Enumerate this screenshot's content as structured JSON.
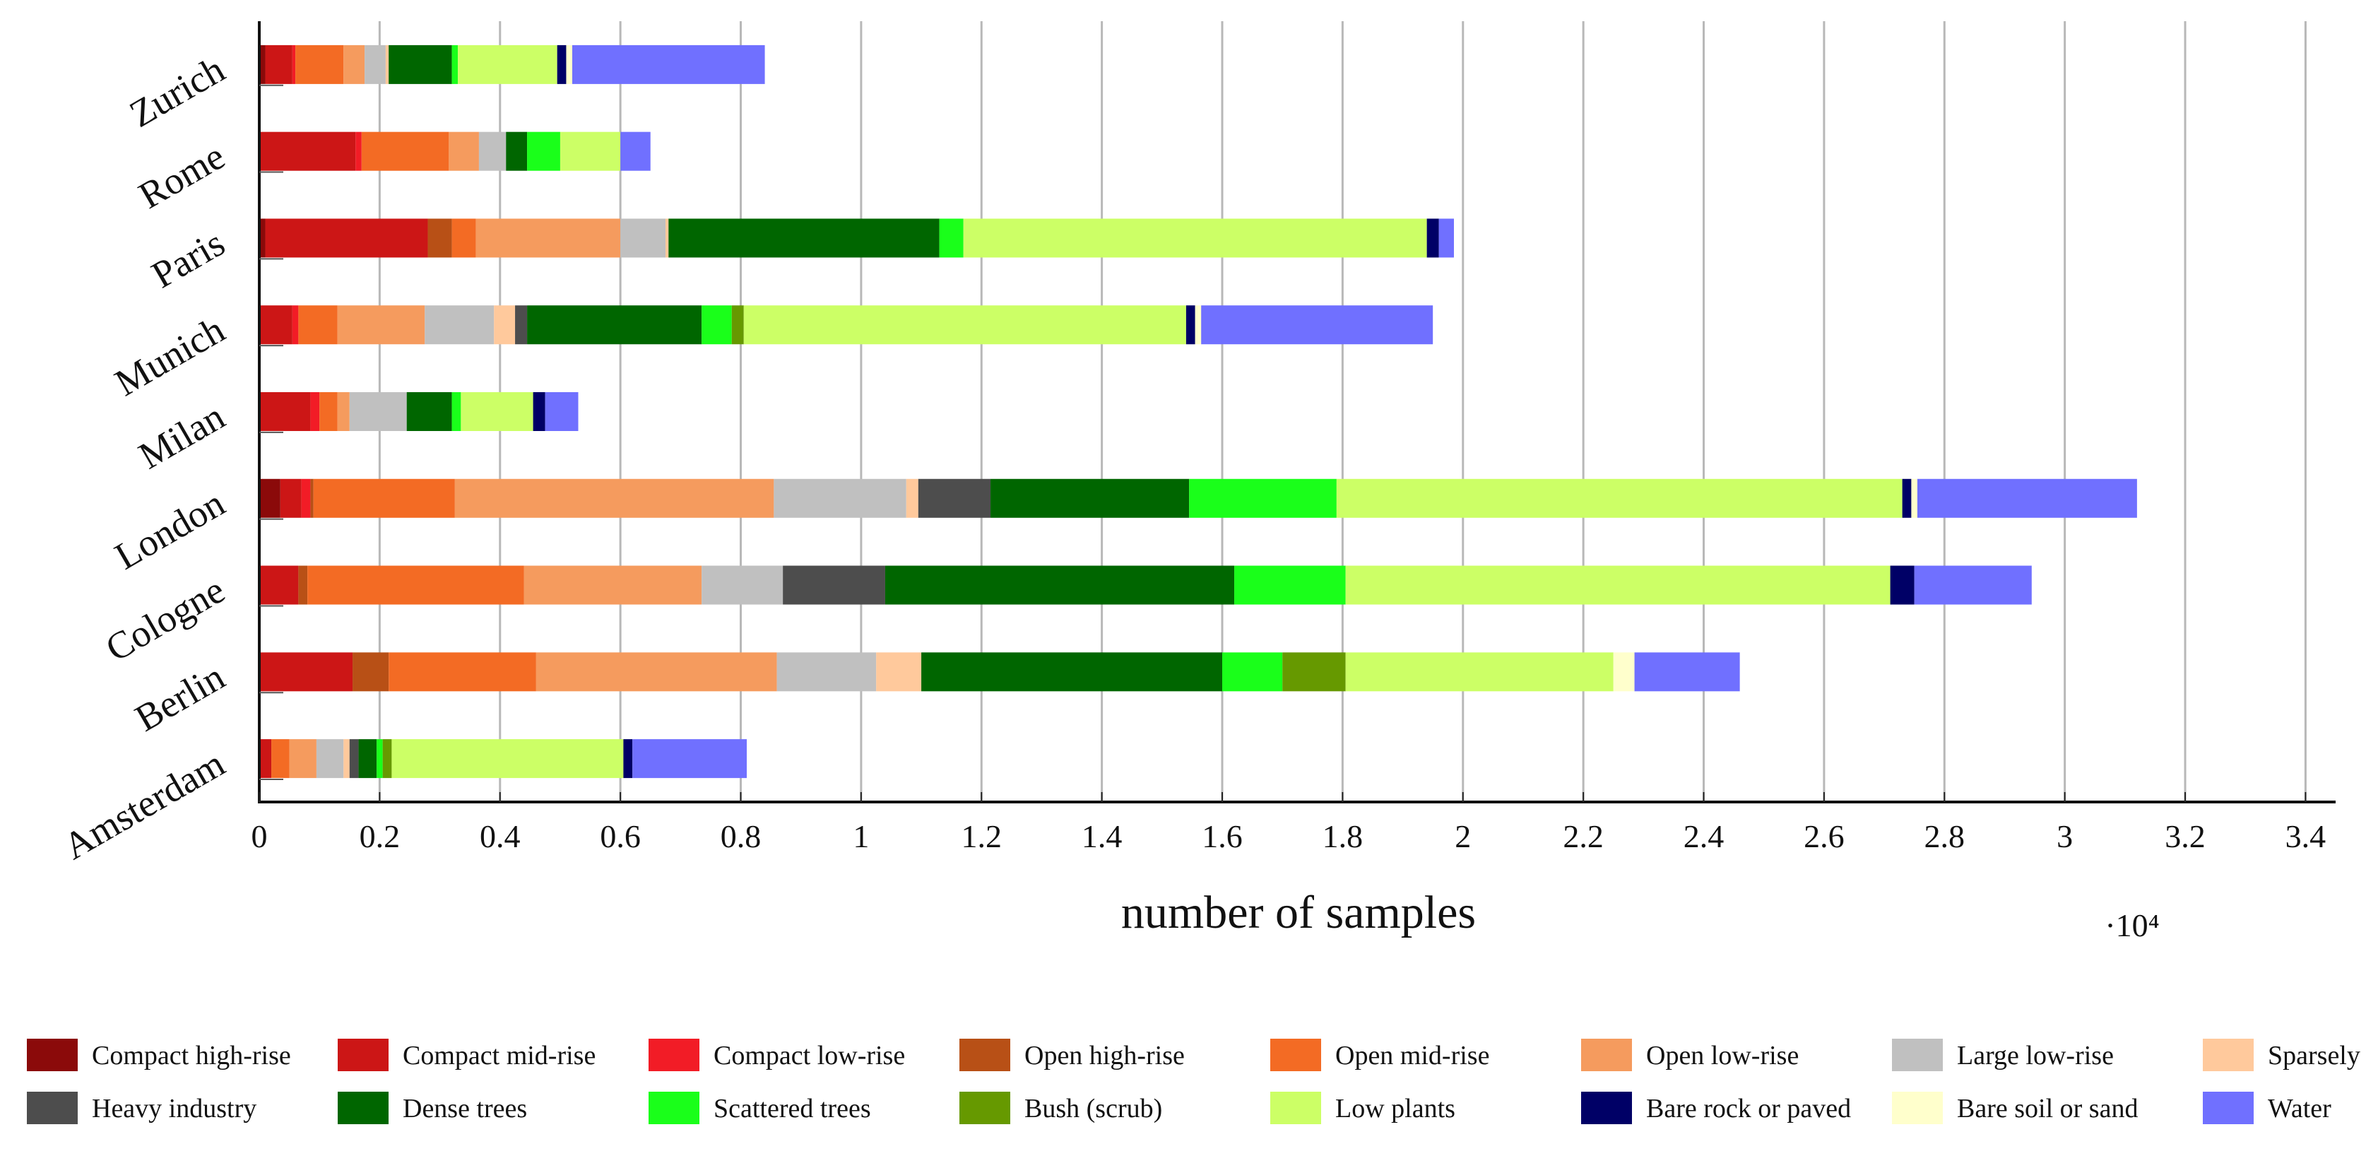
{
  "chart_data": {
    "type": "bar",
    "orientation": "horizontal",
    "stacked": true,
    "xlabel": "number of samples",
    "x_scale_label": "·10⁴",
    "xlim": [
      0,
      34500
    ],
    "xticks": [
      0,
      2000,
      4000,
      6000,
      8000,
      10000,
      12000,
      14000,
      16000,
      18000,
      20000,
      22000,
      24000,
      26000,
      28000,
      30000,
      32000,
      34000
    ],
    "xtick_labels": [
      "0",
      "0.2",
      "0.4",
      "0.6",
      "0.8",
      "1",
      "1.2",
      "1.4",
      "1.6",
      "1.8",
      "2",
      "2.2",
      "2.4",
      "2.6",
      "2.8",
      "3",
      "3.2",
      "3.4"
    ],
    "grid": "vertical",
    "legend_position": "bottom",
    "categories": [
      "Zurich",
      "Rome",
      "Paris",
      "Munich",
      "Milan",
      "London",
      "Cologne",
      "Berlin",
      "Amsterdam"
    ],
    "series": [
      {
        "name": "Compact high-rise",
        "color": "#8b0a0a",
        "values": [
          100,
          0,
          100,
          0,
          0,
          350,
          0,
          0,
          0
        ]
      },
      {
        "name": "Compact mid-rise",
        "color": "#cc1616",
        "values": [
          450,
          1600,
          2700,
          550,
          850,
          350,
          650,
          1550,
          200
        ]
      },
      {
        "name": "Compact low-rise",
        "color": "#f21c26",
        "values": [
          50,
          100,
          0,
          100,
          150,
          150,
          0,
          0,
          0
        ]
      },
      {
        "name": "Open high-rise",
        "color": "#b85016",
        "values": [
          0,
          0,
          400,
          0,
          0,
          50,
          150,
          600,
          0
        ]
      },
      {
        "name": "Open mid-rise",
        "color": "#f36b24",
        "values": [
          800,
          1450,
          400,
          650,
          300,
          2350,
          3600,
          2450,
          300
        ]
      },
      {
        "name": "Open low-rise",
        "color": "#f59b5e",
        "values": [
          350,
          500,
          2400,
          1450,
          200,
          5300,
          2950,
          4000,
          450
        ]
      },
      {
        "name": "Large low-rise",
        "color": "#c0c0c0",
        "values": [
          350,
          450,
          750,
          1150,
          950,
          2200,
          1350,
          1650,
          450
        ]
      },
      {
        "name": "Sparsely built",
        "color": "#ffc99c",
        "values": [
          50,
          0,
          50,
          350,
          0,
          200,
          0,
          750,
          100
        ]
      },
      {
        "name": "Heavy industry",
        "color": "#4d4d4d",
        "values": [
          0,
          0,
          0,
          200,
          0,
          1200,
          1700,
          0,
          150
        ]
      },
      {
        "name": "Dense trees",
        "color": "#006600",
        "values": [
          1050,
          350,
          4500,
          2900,
          750,
          3300,
          5800,
          5000,
          300
        ]
      },
      {
        "name": "Scattered trees",
        "color": "#1aff1a",
        "values": [
          100,
          550,
          400,
          500,
          150,
          2450,
          1850,
          1000,
          100
        ]
      },
      {
        "name": "Bush (scrub)",
        "color": "#669900",
        "values": [
          0,
          0,
          0,
          200,
          0,
          0,
          0,
          1050,
          150
        ]
      },
      {
        "name": "Low plants",
        "color": "#ccff66",
        "values": [
          1650,
          1000,
          7700,
          7350,
          1200,
          9400,
          9050,
          4450,
          3850
        ]
      },
      {
        "name": "Bare rock or paved",
        "color": "#000066",
        "values": [
          150,
          0,
          200,
          150,
          200,
          150,
          400,
          0,
          150
        ]
      },
      {
        "name": "Bare soil or sand",
        "color": "#ffffcc",
        "values": [
          100,
          0,
          0,
          100,
          0,
          100,
          0,
          350,
          0
        ]
      },
      {
        "name": "Water",
        "color": "#7070ff",
        "values": [
          3200,
          500,
          250,
          3850,
          550,
          3650,
          1950,
          1750,
          1900
        ]
      }
    ]
  }
}
